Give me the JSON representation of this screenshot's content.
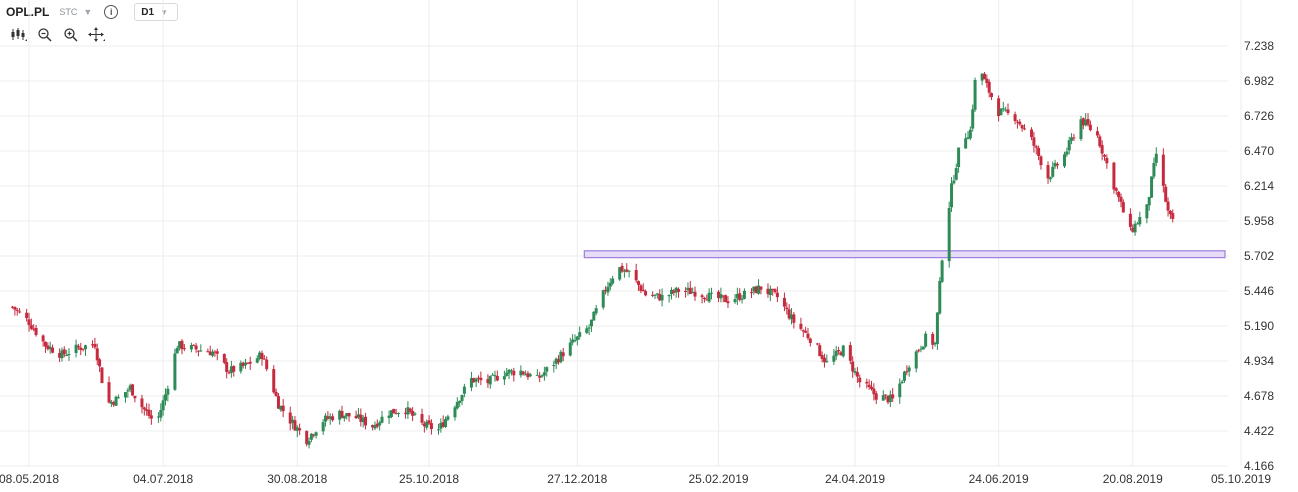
{
  "header": {
    "symbol": "OPL.PL",
    "market": "STC",
    "info_icon": "info-icon",
    "timeframe": "D1"
  },
  "toolbar": {
    "tools": [
      "candles-icon",
      "zoom-out-icon",
      "zoom-in-icon",
      "crosshair-icon"
    ]
  },
  "colors": {
    "up": "#2e8b57",
    "down": "#c62a3e",
    "grid": "#ececec",
    "zone_fill": "#e6dcf7",
    "zone_stroke": "#9d7fe0"
  },
  "chart_data": {
    "type": "candlestick",
    "title": "",
    "xlabel": "",
    "ylabel": "",
    "y_ticks": [
      "7.238",
      "6.982",
      "6.726",
      "6.470",
      "6.214",
      "5.958",
      "5.702",
      "5.446",
      "5.190",
      "4.934",
      "4.678",
      "4.422",
      "4.166"
    ],
    "x_ticks": [
      "08.05.2018",
      "04.07.2018",
      "30.08.2018",
      "25.10.2018",
      "27.12.2018",
      "25.02.2019",
      "24.04.2019",
      "24.06.2019",
      "20.08.2019",
      "05.10.2019"
    ],
    "ylim": [
      4.166,
      7.238
    ],
    "grid": true,
    "support_zone": {
      "low": 5.69,
      "high": 5.74,
      "from": "27.12.2018",
      "to": "05.10.2019"
    },
    "close_path": [
      [
        "2018-05-01",
        5.33
      ],
      [
        "2018-05-08",
        5.22
      ],
      [
        "2018-05-15",
        5.05
      ],
      [
        "2018-05-22",
        4.98
      ],
      [
        "2018-05-29",
        5.03
      ],
      [
        "2018-06-05",
        5.06
      ],
      [
        "2018-06-10",
        4.62
      ],
      [
        "2018-06-15",
        4.66
      ],
      [
        "2018-06-20",
        4.74
      ],
      [
        "2018-06-25",
        4.6
      ],
      [
        "2018-07-01",
        4.47
      ],
      [
        "2018-07-05",
        4.69
      ],
      [
        "2018-07-10",
        5.05
      ],
      [
        "2018-07-18",
        5.02
      ],
      [
        "2018-07-25",
        5.0
      ],
      [
        "2018-08-01",
        4.86
      ],
      [
        "2018-08-08",
        4.9
      ],
      [
        "2018-08-15",
        4.98
      ],
      [
        "2018-08-22",
        4.62
      ],
      [
        "2018-08-27",
        4.5
      ],
      [
        "2018-09-03",
        4.36
      ],
      [
        "2018-09-10",
        4.5
      ],
      [
        "2018-09-17",
        4.55
      ],
      [
        "2018-09-24",
        4.52
      ],
      [
        "2018-10-01",
        4.46
      ],
      [
        "2018-10-08",
        4.56
      ],
      [
        "2018-10-15",
        4.58
      ],
      [
        "2018-10-22",
        4.47
      ],
      [
        "2018-10-29",
        4.43
      ],
      [
        "2018-11-05",
        4.62
      ],
      [
        "2018-11-12",
        4.8
      ],
      [
        "2018-11-19",
        4.78
      ],
      [
        "2018-11-26",
        4.85
      ],
      [
        "2018-12-03",
        4.86
      ],
      [
        "2018-12-10",
        4.8
      ],
      [
        "2018-12-17",
        4.92
      ],
      [
        "2018-12-24",
        5.05
      ],
      [
        "2019-01-01",
        5.18
      ],
      [
        "2019-01-08",
        5.46
      ],
      [
        "2019-01-13",
        5.62
      ],
      [
        "2019-01-18",
        5.58
      ],
      [
        "2019-01-25",
        5.42
      ],
      [
        "2019-02-01",
        5.4
      ],
      [
        "2019-02-08",
        5.45
      ],
      [
        "2019-02-15",
        5.44
      ],
      [
        "2019-02-22",
        5.4
      ],
      [
        "2019-03-01",
        5.38
      ],
      [
        "2019-03-08",
        5.42
      ],
      [
        "2019-03-15",
        5.47
      ],
      [
        "2019-03-22",
        5.4
      ],
      [
        "2019-03-29",
        5.22
      ],
      [
        "2019-04-05",
        5.1
      ],
      [
        "2019-04-12",
        4.92
      ],
      [
        "2019-04-19",
        5.02
      ],
      [
        "2019-04-26",
        4.78
      ],
      [
        "2019-05-03",
        4.68
      ],
      [
        "2019-05-10",
        4.65
      ],
      [
        "2019-05-17",
        4.92
      ],
      [
        "2019-05-24",
        5.1
      ],
      [
        "2019-05-28",
        5.06
      ],
      [
        "2019-05-31",
        5.7
      ],
      [
        "2019-06-04",
        6.2
      ],
      [
        "2019-06-08",
        6.55
      ],
      [
        "2019-06-12",
        6.62
      ],
      [
        "2019-06-15",
        7.15
      ],
      [
        "2019-06-18",
        6.98
      ],
      [
        "2019-06-24",
        6.76
      ],
      [
        "2019-07-01",
        6.72
      ],
      [
        "2019-07-08",
        6.55
      ],
      [
        "2019-07-15",
        6.28
      ],
      [
        "2019-07-22",
        6.44
      ],
      [
        "2019-07-29",
        6.7
      ],
      [
        "2019-08-05",
        6.58
      ],
      [
        "2019-08-12",
        6.22
      ],
      [
        "2019-08-19",
        5.88
      ],
      [
        "2019-08-26",
        6.05
      ],
      [
        "2019-08-30",
        6.45
      ],
      [
        "2019-09-04",
        6.02
      ],
      [
        "2019-09-08",
        5.87
      ]
    ]
  }
}
